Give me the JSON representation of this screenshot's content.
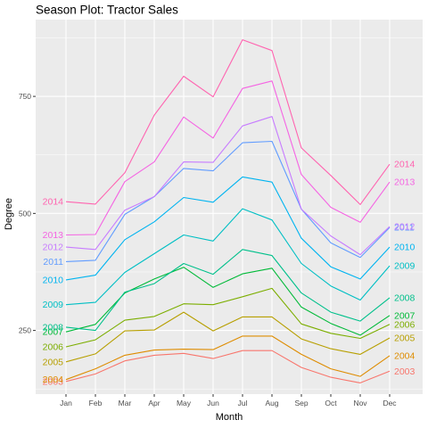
{
  "chart_data": {
    "type": "line",
    "title": "Season Plot: Tractor Sales",
    "xlabel": "Month",
    "ylabel": "Degree",
    "categories": [
      "Jan",
      "Feb",
      "Mar",
      "Apr",
      "May",
      "Jun",
      "Jul",
      "Aug",
      "Sep",
      "Oct",
      "Nov",
      "Dec"
    ],
    "y_ticks": [
      250,
      500,
      750
    ],
    "ylim": [
      114,
      914
    ],
    "grid": true,
    "panel_background": "#ebebeb",
    "grid_color": "#ffffff",
    "series": [
      {
        "name": "2003",
        "color": "#F8766D",
        "values": [
          141,
          157,
          185,
          197,
          201,
          190,
          207,
          207,
          171,
          150,
          138,
          163
        ]
      },
      {
        "name": "2004",
        "color": "#DE8C00",
        "values": [
          145,
          168,
          197,
          208,
          210,
          209,
          238,
          238,
          199,
          168,
          152,
          196
        ]
      },
      {
        "name": "2005",
        "color": "#B79F00",
        "values": [
          183,
          200,
          249,
          251,
          289,
          249,
          279,
          279,
          232,
          211,
          199,
          234
        ]
      },
      {
        "name": "2006",
        "color": "#7CAE00",
        "values": [
          215,
          230,
          272,
          280,
          307,
          305,
          322,
          340,
          264,
          244,
          233,
          263
        ]
      },
      {
        "name": "2007",
        "color": "#00BA38",
        "values": [
          247,
          263,
          330,
          360,
          385,
          342,
          371,
          383,
          300,
          265,
          240,
          282
        ]
      },
      {
        "name": "2008",
        "color": "#00C08B",
        "values": [
          257,
          250,
          332,
          350,
          393,
          370,
          423,
          410,
          330,
          289,
          270,
          320
        ]
      },
      {
        "name": "2009",
        "color": "#00BFC4",
        "values": [
          305,
          310,
          374,
          414,
          454,
          441,
          510,
          486,
          393,
          345,
          315,
          388
        ]
      },
      {
        "name": "2010",
        "color": "#00B4F0",
        "values": [
          358,
          368,
          444,
          482,
          534,
          524,
          578,
          567,
          447,
          386,
          360,
          428
        ]
      },
      {
        "name": "2011",
        "color": "#619CFF",
        "values": [
          397,
          400,
          498,
          536,
          596,
          591,
          651,
          654,
          509,
          437,
          406,
          470
        ]
      },
      {
        "name": "2012",
        "color": "#C77CFF",
        "values": [
          428,
          423,
          507,
          536,
          610,
          609,
          687,
          707,
          509,
          452,
          412,
          472
        ]
      },
      {
        "name": "2013",
        "color": "#F564E3",
        "values": [
          454,
          455,
          568,
          610,
          706,
          661,
          767,
          783,
          583,
          513,
          481,
          567
        ]
      },
      {
        "name": "2014",
        "color": "#FF64B0",
        "values": [
          525,
          520,
          587,
          710,
          793,
          749,
          871,
          848,
          640,
          581,
          519,
          605
        ]
      }
    ],
    "start_labels": [
      "2003",
      "2004",
      "2005",
      "2006",
      "2007",
      "2008",
      "2009",
      "2010",
      "2011",
      "2012",
      "2013",
      "2014"
    ],
    "end_labels": [
      "2003",
      "2004",
      "2005",
      "2006",
      "2007",
      "2008",
      "2009",
      "2010",
      "2011",
      "2012",
      "2013",
      "2014"
    ]
  }
}
